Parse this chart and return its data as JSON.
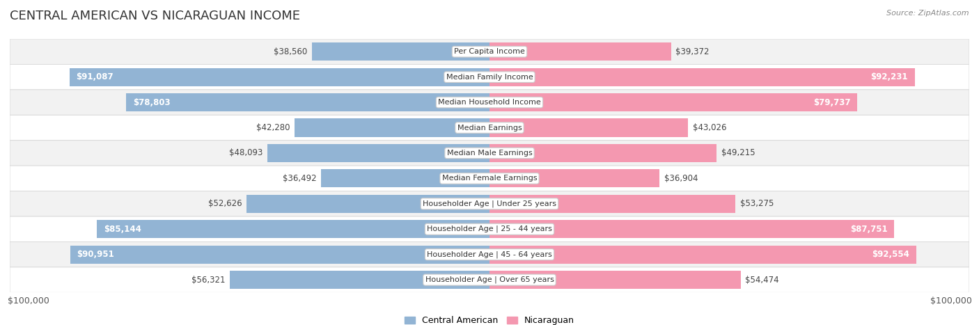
{
  "title": "CENTRAL AMERICAN VS NICARAGUAN INCOME",
  "source": "Source: ZipAtlas.com",
  "categories": [
    "Per Capita Income",
    "Median Family Income",
    "Median Household Income",
    "Median Earnings",
    "Median Male Earnings",
    "Median Female Earnings",
    "Householder Age | Under 25 years",
    "Householder Age | 25 - 44 years",
    "Householder Age | 45 - 64 years",
    "Householder Age | Over 65 years"
  ],
  "central_american": [
    38560,
    91087,
    78803,
    42280,
    48093,
    36492,
    52626,
    85144,
    90951,
    56321
  ],
  "nicaraguan": [
    39372,
    92231,
    79737,
    43026,
    49215,
    36904,
    53275,
    87751,
    92554,
    54474
  ],
  "max_value": 100000,
  "ca_color": "#92b4d4",
  "ni_color": "#f498b0",
  "ca_label": "Central American",
  "ni_label": "Nicaraguan",
  "ca_labels": [
    "$38,560",
    "$91,087",
    "$78,803",
    "$42,280",
    "$48,093",
    "$36,492",
    "$52,626",
    "$85,144",
    "$90,951",
    "$56,321"
  ],
  "ni_labels": [
    "$39,372",
    "$92,231",
    "$79,737",
    "$43,026",
    "$49,215",
    "$36,904",
    "$53,275",
    "$87,751",
    "$92,554",
    "$54,474"
  ],
  "ca_inside_threshold": 70000,
  "ni_inside_threshold": 70000,
  "row_bg_odd": "#f2f2f2",
  "row_bg_even": "#ffffff",
  "row_border": "#d8d8d8",
  "bar_height": 0.72
}
